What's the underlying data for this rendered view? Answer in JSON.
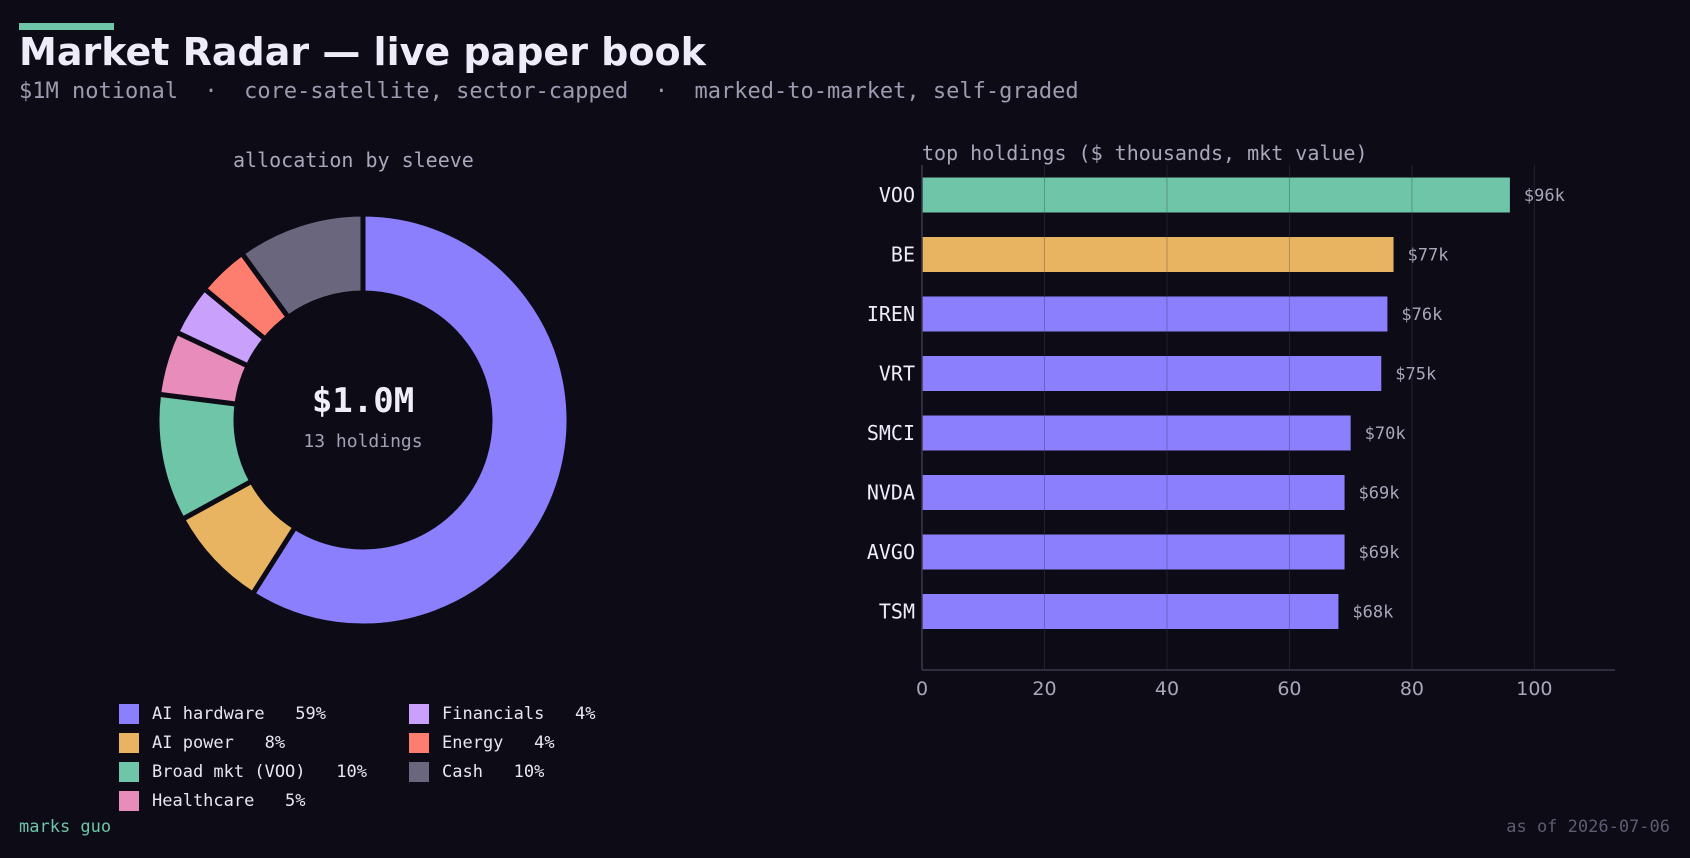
{
  "header": {
    "title": "Market Radar — live paper book",
    "subtitle": "$1M notional  ·  core-satellite, sector-capped  ·  marked-to-market, self-graded"
  },
  "footer": {
    "author": "marks guo",
    "as_of": "as of 2026-07-06"
  },
  "colors": {
    "background": "#0c0b16",
    "accent": "#6ec5a8",
    "ai_hardware": "#8b7ffe",
    "ai_power": "#e8b462",
    "broad_mkt": "#6ec5a8",
    "healthcare": "#e88cbc",
    "financials": "#c9a0fc",
    "energy": "#fd7e6e",
    "cash": "#6a667e"
  },
  "chart_data": [
    {
      "type": "pie",
      "title": "allocation by sleeve",
      "center_value": "$1.0M",
      "center_label": "13 holdings",
      "slices": [
        {
          "label": "AI hardware",
          "legend_label": "AI hardware   59%",
          "value": 59,
          "color": "#8b7ffe"
        },
        {
          "label": "AI power",
          "legend_label": "AI power   8%",
          "value": 8,
          "color": "#e8b462"
        },
        {
          "label": "Broad mkt (VOO)",
          "legend_label": "Broad mkt (VOO)   10%",
          "value": 10,
          "color": "#6ec5a8"
        },
        {
          "label": "Healthcare",
          "legend_label": "Healthcare   5%",
          "value": 5,
          "color": "#e88cbc"
        },
        {
          "label": "Financials",
          "legend_label": "Financials   4%",
          "value": 4,
          "color": "#c9a0fc"
        },
        {
          "label": "Energy",
          "legend_label": "Energy   4%",
          "value": 4,
          "color": "#fd7e6e"
        },
        {
          "label": "Cash",
          "legend_label": "Cash   10%",
          "value": 10,
          "color": "#6a667e"
        }
      ]
    },
    {
      "type": "bar",
      "orientation": "horizontal",
      "title": "top holdings ($ thousands, mkt value)",
      "categories": [
        "VOO",
        "BE",
        "IREN",
        "VRT",
        "SMCI",
        "NVDA",
        "AVGO",
        "TSM"
      ],
      "values": [
        96,
        77,
        76,
        75,
        70,
        69,
        69,
        68
      ],
      "value_labels": [
        "$96k",
        "$77k",
        "$76k",
        "$75k",
        "$70k",
        "$69k",
        "$69k",
        "$68k"
      ],
      "colors": [
        "#6ec5a8",
        "#e8b462",
        "#8b7ffe",
        "#8b7ffe",
        "#8b7ffe",
        "#8b7ffe",
        "#8b7ffe",
        "#8b7ffe"
      ],
      "xticks": [
        0,
        20,
        40,
        60,
        80,
        100
      ],
      "xlim": [
        0,
        113
      ],
      "grid": true
    }
  ]
}
